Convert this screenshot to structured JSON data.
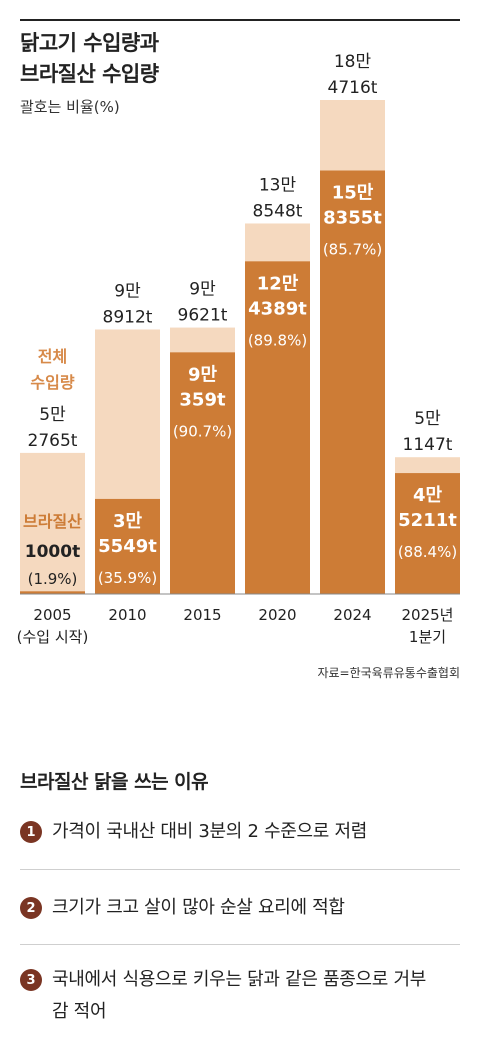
{
  "title_line1": "닭고기 수입량과",
  "title_line2": "브라질산 수입량",
  "subtitle": "괄호는 비율(%)",
  "source": "자료=한국육류유통수출협회",
  "colors": {
    "total": "#f5d9bf",
    "brazil": "#cd7c36",
    "label_total": "#d78a4a",
    "badge": "#7a3523"
  },
  "chart_data": {
    "type": "bar",
    "categories": [
      "2005\n(수입 시작)",
      "2010",
      "2015",
      "2020",
      "2024",
      "2025년\n1분기"
    ],
    "series": [
      {
        "name": "전체 수입량",
        "values": [
          52765,
          98912,
          99621,
          138548,
          184716,
          51147
        ]
      },
      {
        "name": "브라질산",
        "values": [
          1000,
          35549,
          90359,
          124389,
          158355,
          45211
        ]
      }
    ],
    "total_labels": [
      "5만\n2765t",
      "9만\n8912t",
      "9만\n9621t",
      "13만\n8548t",
      "18만\n4716t",
      "5만\n1147t"
    ],
    "brazil_labels": [
      "1000t",
      "3만\n5549t",
      "9만\n359t",
      "12만\n4389t",
      "15만\n8355t",
      "4만\n5211t"
    ],
    "brazil_pct": [
      "(1.9%)",
      "(35.9%)",
      "(90.7%)",
      "(89.8%)",
      "(85.7%)",
      "(88.4%)"
    ],
    "legend_total": "전체\n수입량",
    "legend_brazil": "브라질산",
    "ylim": [
      0,
      184716
    ]
  },
  "reasons": {
    "title": "브라질산 닭을 쓰는 이유",
    "items": [
      {
        "num": "1",
        "text": "가격이 국내산 대비 3분의 2 수준으로 저렴"
      },
      {
        "num": "2",
        "text": "크기가 크고 살이 많아 순살 요리에 적합"
      },
      {
        "num": "3",
        "text": "국내에서 식용으로 키우는 닭과 같은 품종으로 거부감 적어"
      }
    ]
  }
}
